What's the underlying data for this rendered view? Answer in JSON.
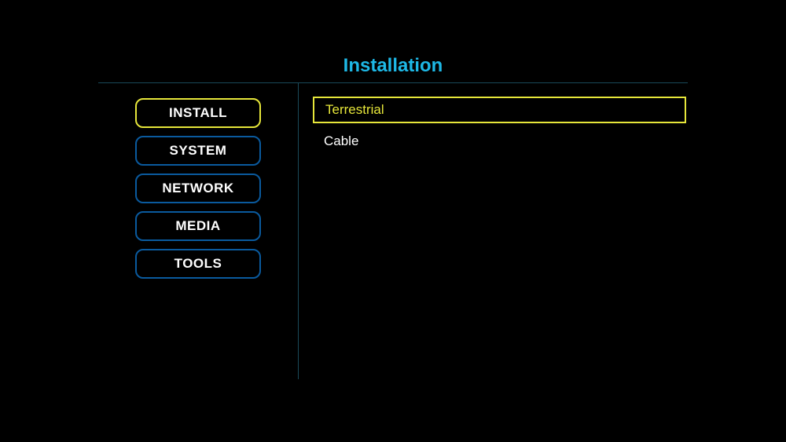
{
  "page": {
    "title": "Installation"
  },
  "sidebar": {
    "items": [
      {
        "label": "INSTALL",
        "active": true
      },
      {
        "label": "SYSTEM",
        "active": false
      },
      {
        "label": "NETWORK",
        "active": false
      },
      {
        "label": "MEDIA",
        "active": false
      },
      {
        "label": "TOOLS",
        "active": false
      }
    ]
  },
  "options": {
    "items": [
      {
        "label": "Terrestrial",
        "selected": true
      },
      {
        "label": "Cable",
        "selected": false
      }
    ]
  },
  "colors": {
    "background": "#000000",
    "title": "#1eb8e6",
    "divider": "#1a4a5a",
    "button_border": "#0a5a9e",
    "highlight": "#e6e63a",
    "text": "#ffffff"
  }
}
